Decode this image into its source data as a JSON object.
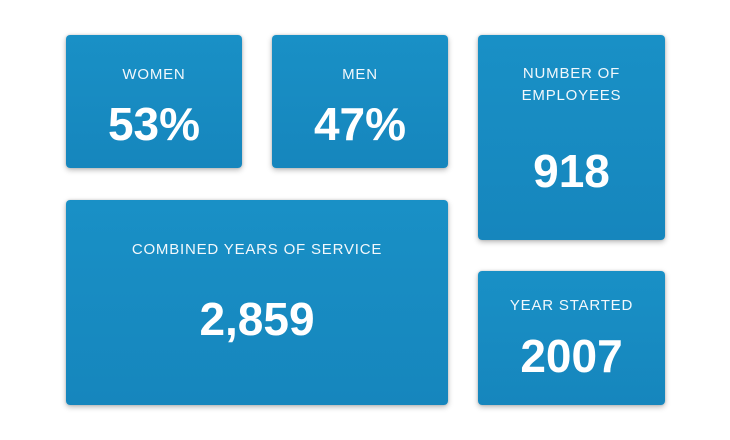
{
  "stats": {
    "women": {
      "label": "WOMEN",
      "value": "53%"
    },
    "men": {
      "label": "MEN",
      "value": "47%"
    },
    "employees": {
      "label": "NUMBER OF EMPLOYEES",
      "value": "918"
    },
    "service": {
      "label": "COMBINED YEARS OF SERVICE",
      "value": "2,859"
    },
    "year_started": {
      "label": "YEAR STARTED",
      "value": "2007"
    }
  },
  "colors": {
    "card_background": "#1990c6",
    "text": "#ffffff",
    "page_background": "#ffffff"
  }
}
